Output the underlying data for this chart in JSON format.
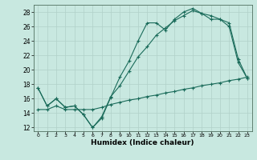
{
  "xlabel": "Humidex (Indice chaleur)",
  "bg_color": "#c8e8e0",
  "grid_color": "#b0d0c8",
  "line_color": "#1a6b5a",
  "xlim": [
    -0.5,
    23.5
  ],
  "ylim": [
    11.5,
    29.0
  ],
  "xticks": [
    0,
    1,
    2,
    3,
    4,
    5,
    6,
    7,
    8,
    9,
    10,
    11,
    12,
    13,
    14,
    15,
    16,
    17,
    18,
    19,
    20,
    21,
    22,
    23
  ],
  "yticks": [
    12,
    14,
    16,
    18,
    20,
    22,
    24,
    26,
    28
  ],
  "line1_x": [
    0,
    1,
    2,
    3,
    4,
    5,
    6,
    7,
    8,
    9,
    10,
    11,
    12,
    13,
    14,
    15,
    16,
    17,
    18,
    19,
    20,
    21,
    22,
    23
  ],
  "line1_y": [
    17.5,
    15.0,
    16.0,
    14.8,
    15.0,
    13.8,
    12.0,
    13.3,
    16.2,
    19.0,
    21.2,
    24.0,
    26.5,
    26.5,
    25.5,
    27.0,
    28.0,
    28.5,
    27.8,
    27.5,
    27.0,
    26.5,
    21.5,
    18.8
  ],
  "line2_x": [
    0,
    1,
    2,
    3,
    4,
    5,
    6,
    7,
    8,
    9,
    10,
    11,
    12,
    13,
    14,
    15,
    16,
    17,
    18,
    19,
    20,
    21,
    22,
    23
  ],
  "line2_y": [
    17.5,
    15.0,
    16.0,
    14.8,
    15.0,
    13.8,
    12.0,
    13.5,
    16.3,
    17.8,
    19.8,
    21.8,
    23.2,
    24.8,
    25.8,
    26.8,
    27.5,
    28.2,
    27.8,
    27.0,
    27.0,
    26.0,
    21.0,
    18.8
  ],
  "line3_x": [
    0,
    1,
    2,
    3,
    4,
    5,
    6,
    7,
    8,
    9,
    10,
    11,
    12,
    13,
    14,
    15,
    16,
    17,
    18,
    19,
    20,
    21,
    22,
    23
  ],
  "line3_y": [
    14.5,
    14.5,
    15.0,
    14.5,
    14.5,
    14.5,
    14.5,
    14.8,
    15.2,
    15.5,
    15.8,
    16.0,
    16.3,
    16.5,
    16.8,
    17.0,
    17.3,
    17.5,
    17.8,
    18.0,
    18.2,
    18.5,
    18.7,
    19.0
  ]
}
